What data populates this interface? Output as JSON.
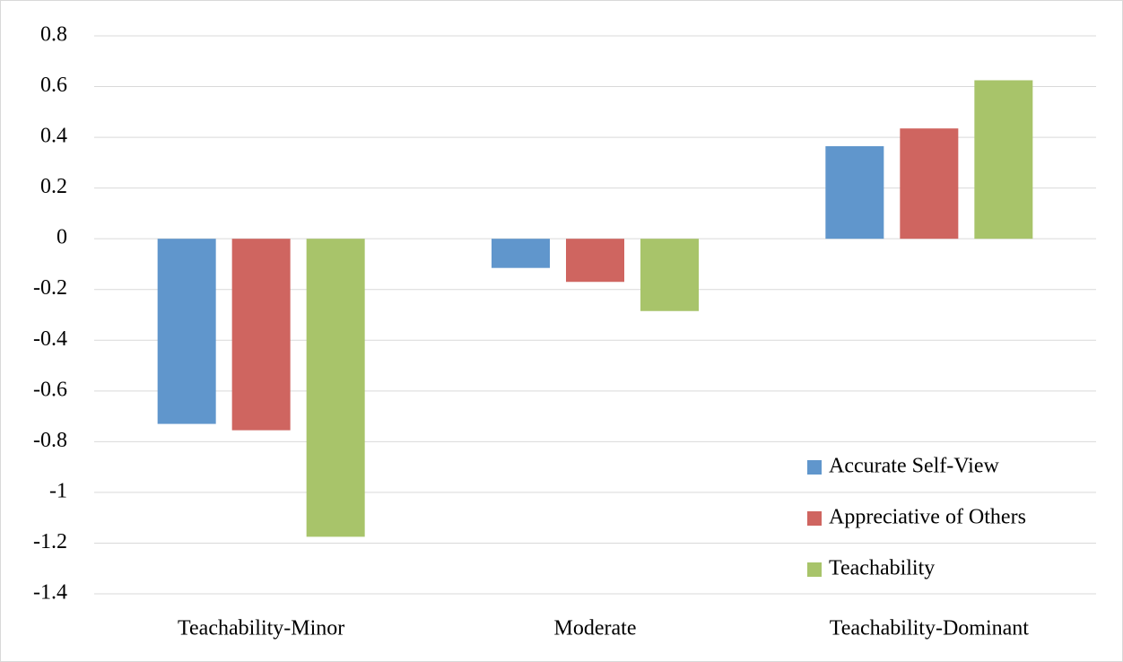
{
  "chart_data": {
    "type": "bar",
    "categories": [
      "Teachability-Minor",
      "Moderate",
      "Teachability-Dominant"
    ],
    "series": [
      {
        "name": "Accurate Self-View",
        "color": "#6096cc",
        "values": [
          -0.73,
          -0.115,
          0.365
        ]
      },
      {
        "name": "Appreciative of Others",
        "color": "#cf6560",
        "values": [
          -0.755,
          -0.17,
          0.435
        ]
      },
      {
        "name": "Teachability",
        "color": "#a8c46a",
        "values": [
          -1.175,
          -0.285,
          0.625
        ]
      }
    ],
    "ylim": [
      -1.4,
      0.8
    ],
    "yticks": [
      -1.4,
      -1.2,
      -1,
      -0.8,
      -0.6,
      -0.4,
      -0.2,
      0,
      0.2,
      0.4,
      0.6,
      0.8
    ],
    "grid": true,
    "legend": "bottom-right"
  }
}
